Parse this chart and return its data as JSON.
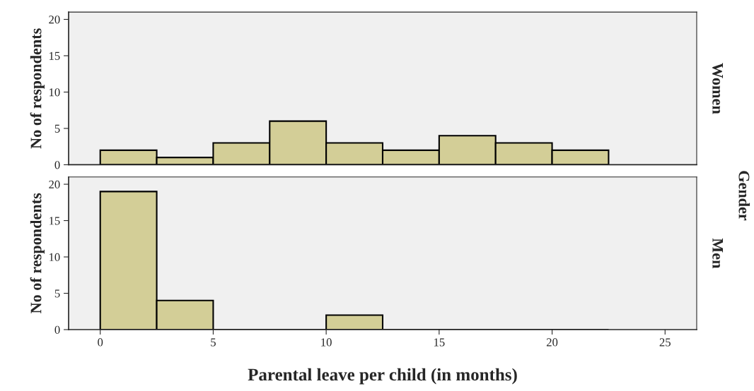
{
  "chart_data": [
    {
      "type": "histogram",
      "ylabel": "No of respondents",
      "annotations": [
        "Women",
        "Gender"
      ],
      "bins": [
        0,
        2.5,
        5,
        7.5,
        10,
        12.5,
        15,
        17.5,
        20,
        22.5
      ],
      "values": [
        2,
        1,
        3,
        6,
        3,
        2,
        4,
        3,
        2
      ],
      "color": "#d3ce97",
      "xlim": [
        -1.4,
        26.4
      ],
      "ylim": [
        0,
        21
      ],
      "xticks": [
        0,
        5,
        10,
        15,
        20,
        25
      ],
      "yticks": [
        0,
        5,
        10,
        15,
        20
      ],
      "tick_labels": "y",
      "grid": false,
      "legend": false
    },
    {
      "type": "histogram",
      "ylabel": "No of respondents",
      "annotations": [
        "Men"
      ],
      "xlabel": "Parental leave per child (in months)",
      "bins": [
        0,
        2.5,
        5,
        7.5,
        10,
        12.5,
        15,
        17.5,
        20,
        22.5
      ],
      "values": [
        19,
        4,
        0,
        0,
        2,
        0,
        0,
        0,
        0
      ],
      "color": "#d3ce97",
      "xlim": [
        -1.4,
        26.4
      ],
      "ylim": [
        0,
        21
      ],
      "xticks": [
        0,
        5,
        10,
        15,
        20,
        25
      ],
      "yticks": [
        0,
        5,
        10,
        15,
        20
      ],
      "grid": false,
      "legend": false
    }
  ]
}
